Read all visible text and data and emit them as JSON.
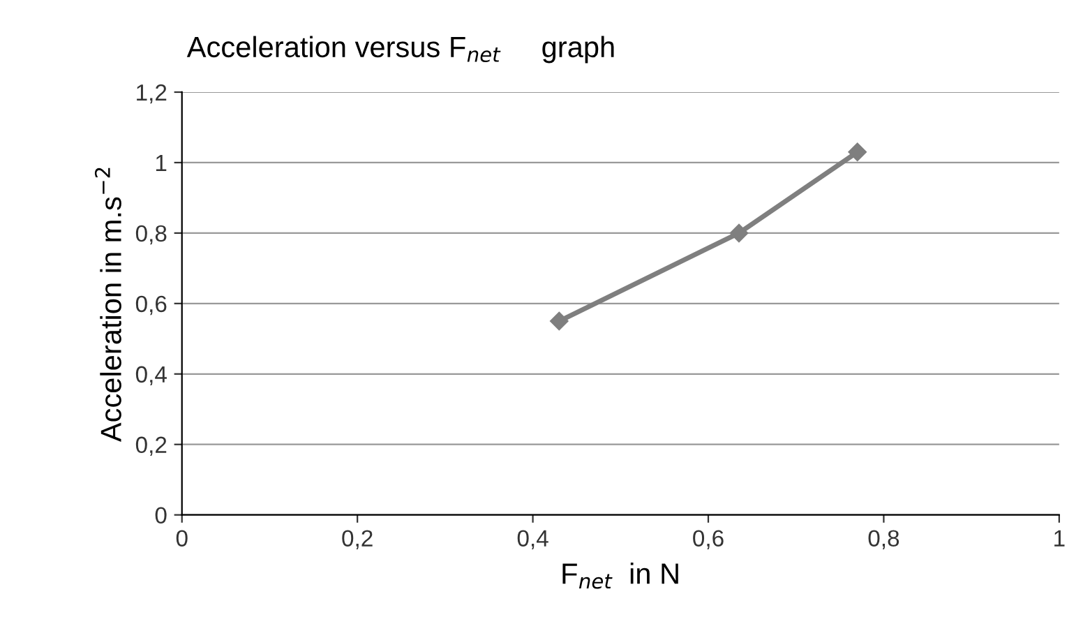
{
  "chart_data": {
    "type": "line",
    "title": "Acceleration versus F$_{net}$     graph",
    "xlabel": "F$_{net}$  in N",
    "ylabel": "Acceleration in m.s$^{−2}$",
    "x": [
      0.43,
      0.635,
      0.77
    ],
    "series": [
      {
        "color": "#7f7f7f",
        "values": [
          0.55,
          0.8,
          1.03
        ]
      }
    ],
    "xlim": [
      0,
      1
    ],
    "ylim": [
      0,
      1.2
    ],
    "xticks": [
      0,
      {
        "value": 0.2,
        "label": "0,2"
      },
      {
        "value": 0.4,
        "label": "0,4"
      },
      {
        "value": 0.6,
        "label": "0,6"
      },
      {
        "value": 0.8,
        "label": "0,8"
      },
      1
    ],
    "yticks": [
      0,
      {
        "value": 0.2,
        "label": "0,2"
      },
      {
        "value": 0.4,
        "label": "0,4"
      },
      {
        "value": 0.6,
        "label": "0,6"
      },
      {
        "value": 0.8,
        "label": "0,8"
      },
      1,
      {
        "value": 1.2,
        "label": "1,2"
      }
    ],
    "grid": "y",
    "marker": "diamond",
    "line_style": "solid",
    "legend": false
  }
}
